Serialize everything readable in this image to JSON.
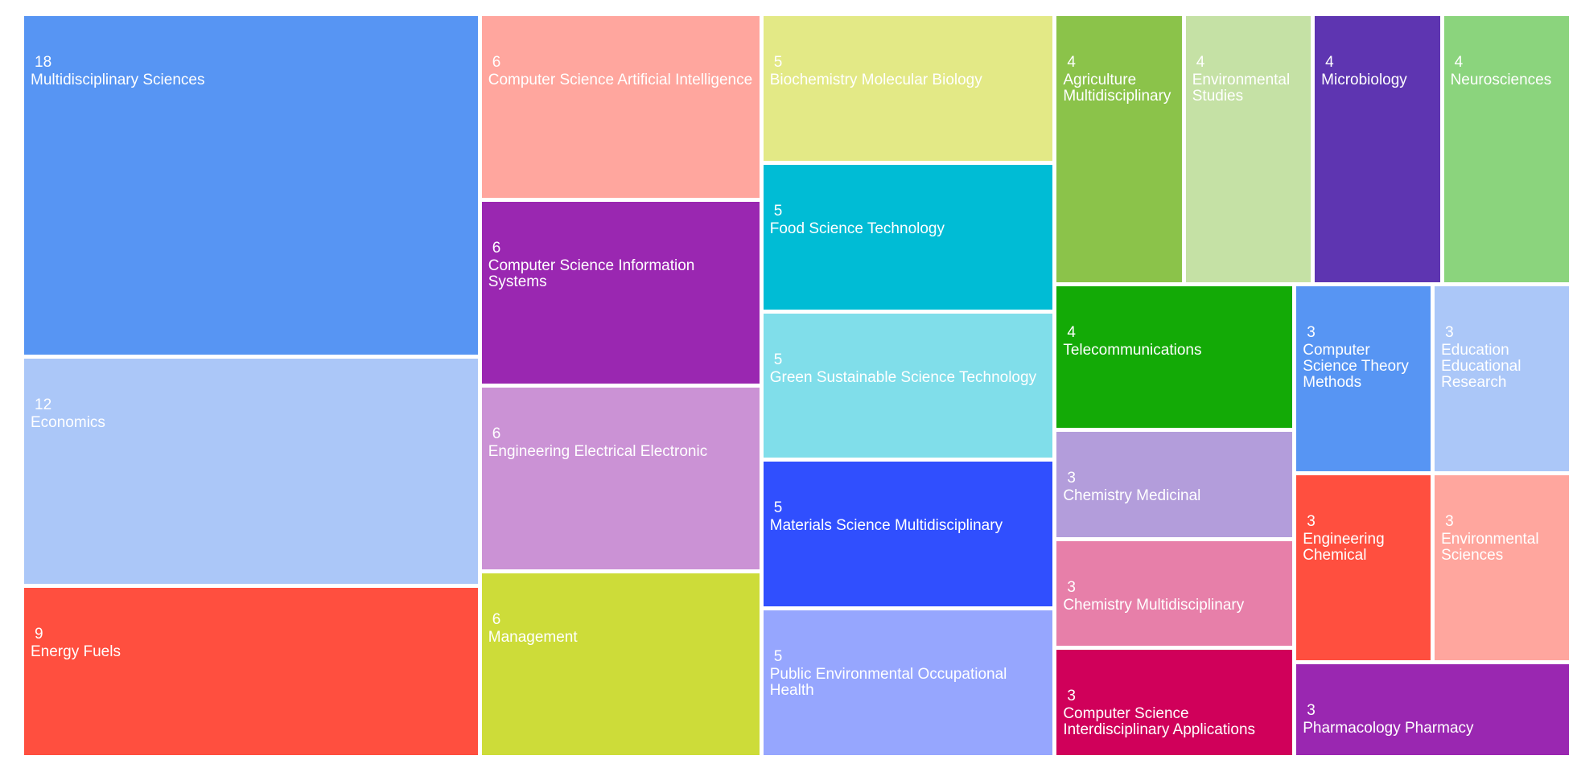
{
  "chart_data": {
    "type": "treemap",
    "categories": [
      "Multidisciplinary Sciences",
      "Economics",
      "Energy Fuels",
      "Computer Science Artificial Intelligence",
      "Computer Science Information Systems",
      "Engineering Electrical Electronic",
      "Management",
      "Biochemistry Molecular Biology",
      "Food Science Technology",
      "Green Sustainable Science Technology",
      "Materials Science Multidisciplinary",
      "Public Environmental Occupational Health",
      "Agriculture Multidisciplinary",
      "Environmental Studies",
      "Microbiology",
      "Neurosciences",
      "Telecommunications",
      "Chemistry Medicinal",
      "Chemistry Multidisciplinary",
      "Computer Science Interdisciplinary Applications",
      "Computer Science Theory Methods",
      "Education Educational Research",
      "Engineering Chemical",
      "Environmental Sciences",
      "Pharmacology Pharmacy"
    ],
    "values": [
      18,
      12,
      9,
      6,
      6,
      6,
      6,
      5,
      5,
      5,
      5,
      5,
      4,
      4,
      4,
      4,
      4,
      3,
      3,
      3,
      3,
      3,
      3,
      3,
      3
    ],
    "colors": [
      "#5795f3",
      "#abc7f8",
      "#ff4f3f",
      "#ffa69e",
      "#9a27b1",
      "#cb92d5",
      "#cddc39",
      "#e3e986",
      "#00bcd5",
      "#80deea",
      "#304ffe",
      "#96a6fe",
      "#8bc34a",
      "#c5e1a5",
      "#5e35b1",
      "#8bd47d",
      "#13aa06",
      "#b39ddb",
      "#e77fa9",
      "#d0005a",
      "#5795f3",
      "#abc7f8",
      "#ff4f3f",
      "#ffa69e",
      "#9a27b1"
    ]
  }
}
